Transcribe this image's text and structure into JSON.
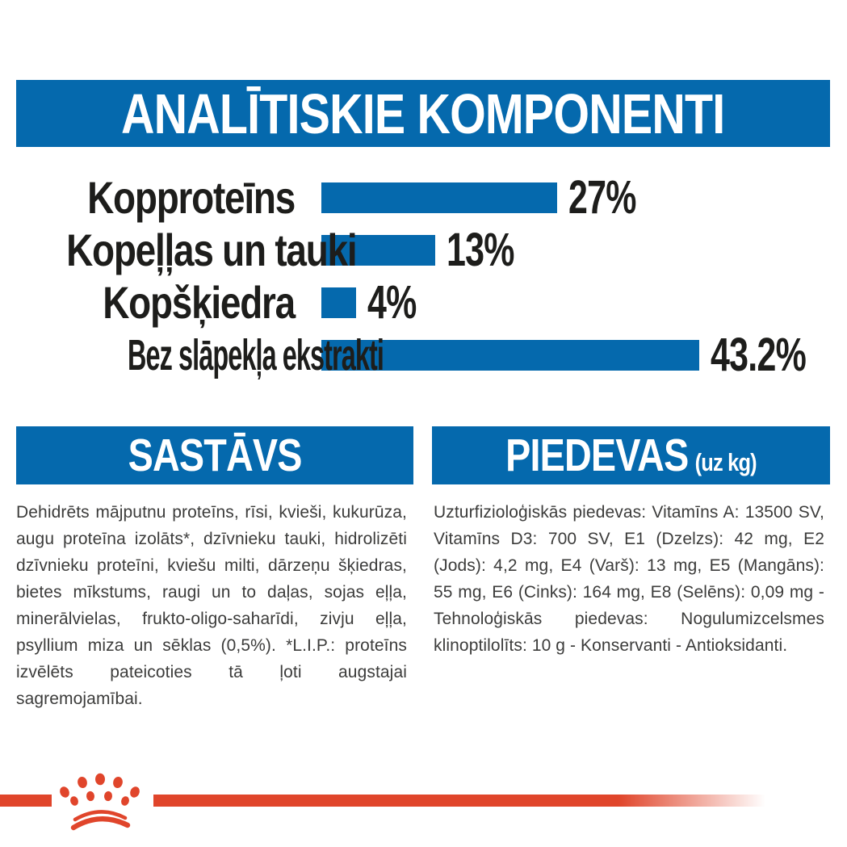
{
  "colors": {
    "blue": "#0569AD",
    "red": "#E0452B",
    "text_dark": "#1d1d1b",
    "text_body": "#3c3c3b"
  },
  "header": {
    "title": "ANALĪTISKIE KOMPONENTI"
  },
  "chart_data": {
    "type": "bar",
    "orientation": "horizontal",
    "title": "ANALĪTISKIE KOMPONENTI",
    "categories": [
      "Kopproteīns",
      "Kopeļļas un tauki",
      "Kopšķiedra",
      "Bez slāpekļa ekstrakti"
    ],
    "values": [
      27,
      13,
      4,
      43.2
    ],
    "value_labels": [
      "27%",
      "13%",
      "4%",
      "43.2%"
    ],
    "bar_color": "#0569AD",
    "xlim": [
      0,
      45
    ],
    "grid": false,
    "legend": false
  },
  "sections": {
    "composition": {
      "title": "SASTĀVS",
      "body": "Dehidrēts mājputnu proteīns, rīsi, kvieši, kukurūza, augu proteīna izolāts*, dzīvnieku tauki, hidrolizēti dzīvnieku proteīni, kviešu milti, dārzeņu šķiedras, bietes mīkstums, raugi un to daļas, sojas eļļa, minerālvielas, frukto-oligo-saharīdi, zivju eļļa, psyllium miza un sēklas (0,5%). *L.I.P.: proteīns izvēlēts pateicoties tā ļoti augstajai sagremojamībai."
    },
    "additives": {
      "title": "PIEDEVAS",
      "title_suffix": "(uz kg)",
      "body": "Uzturfizioloģiskās piedevas: Vitamīns A: 13500 SV, Vitamīns D3: 700 SV, E1 (Dzelzs): 42 mg, E2 (Jods): 4,2 mg, E4 (Varš): 13 mg, E5 (Mangāns): 55 mg, E6 (Cinks): 164 mg, E8 (Selēns): 0,09 mg - Tehnoloģiskās piedevas: Nogulumizcelsmes klinoptilolīts: 10 g - Konservanti - Antioksidanti."
    }
  },
  "footer": {
    "logo": "royal-canin-crown-paw-logo",
    "logo_color": "#E0452B"
  }
}
